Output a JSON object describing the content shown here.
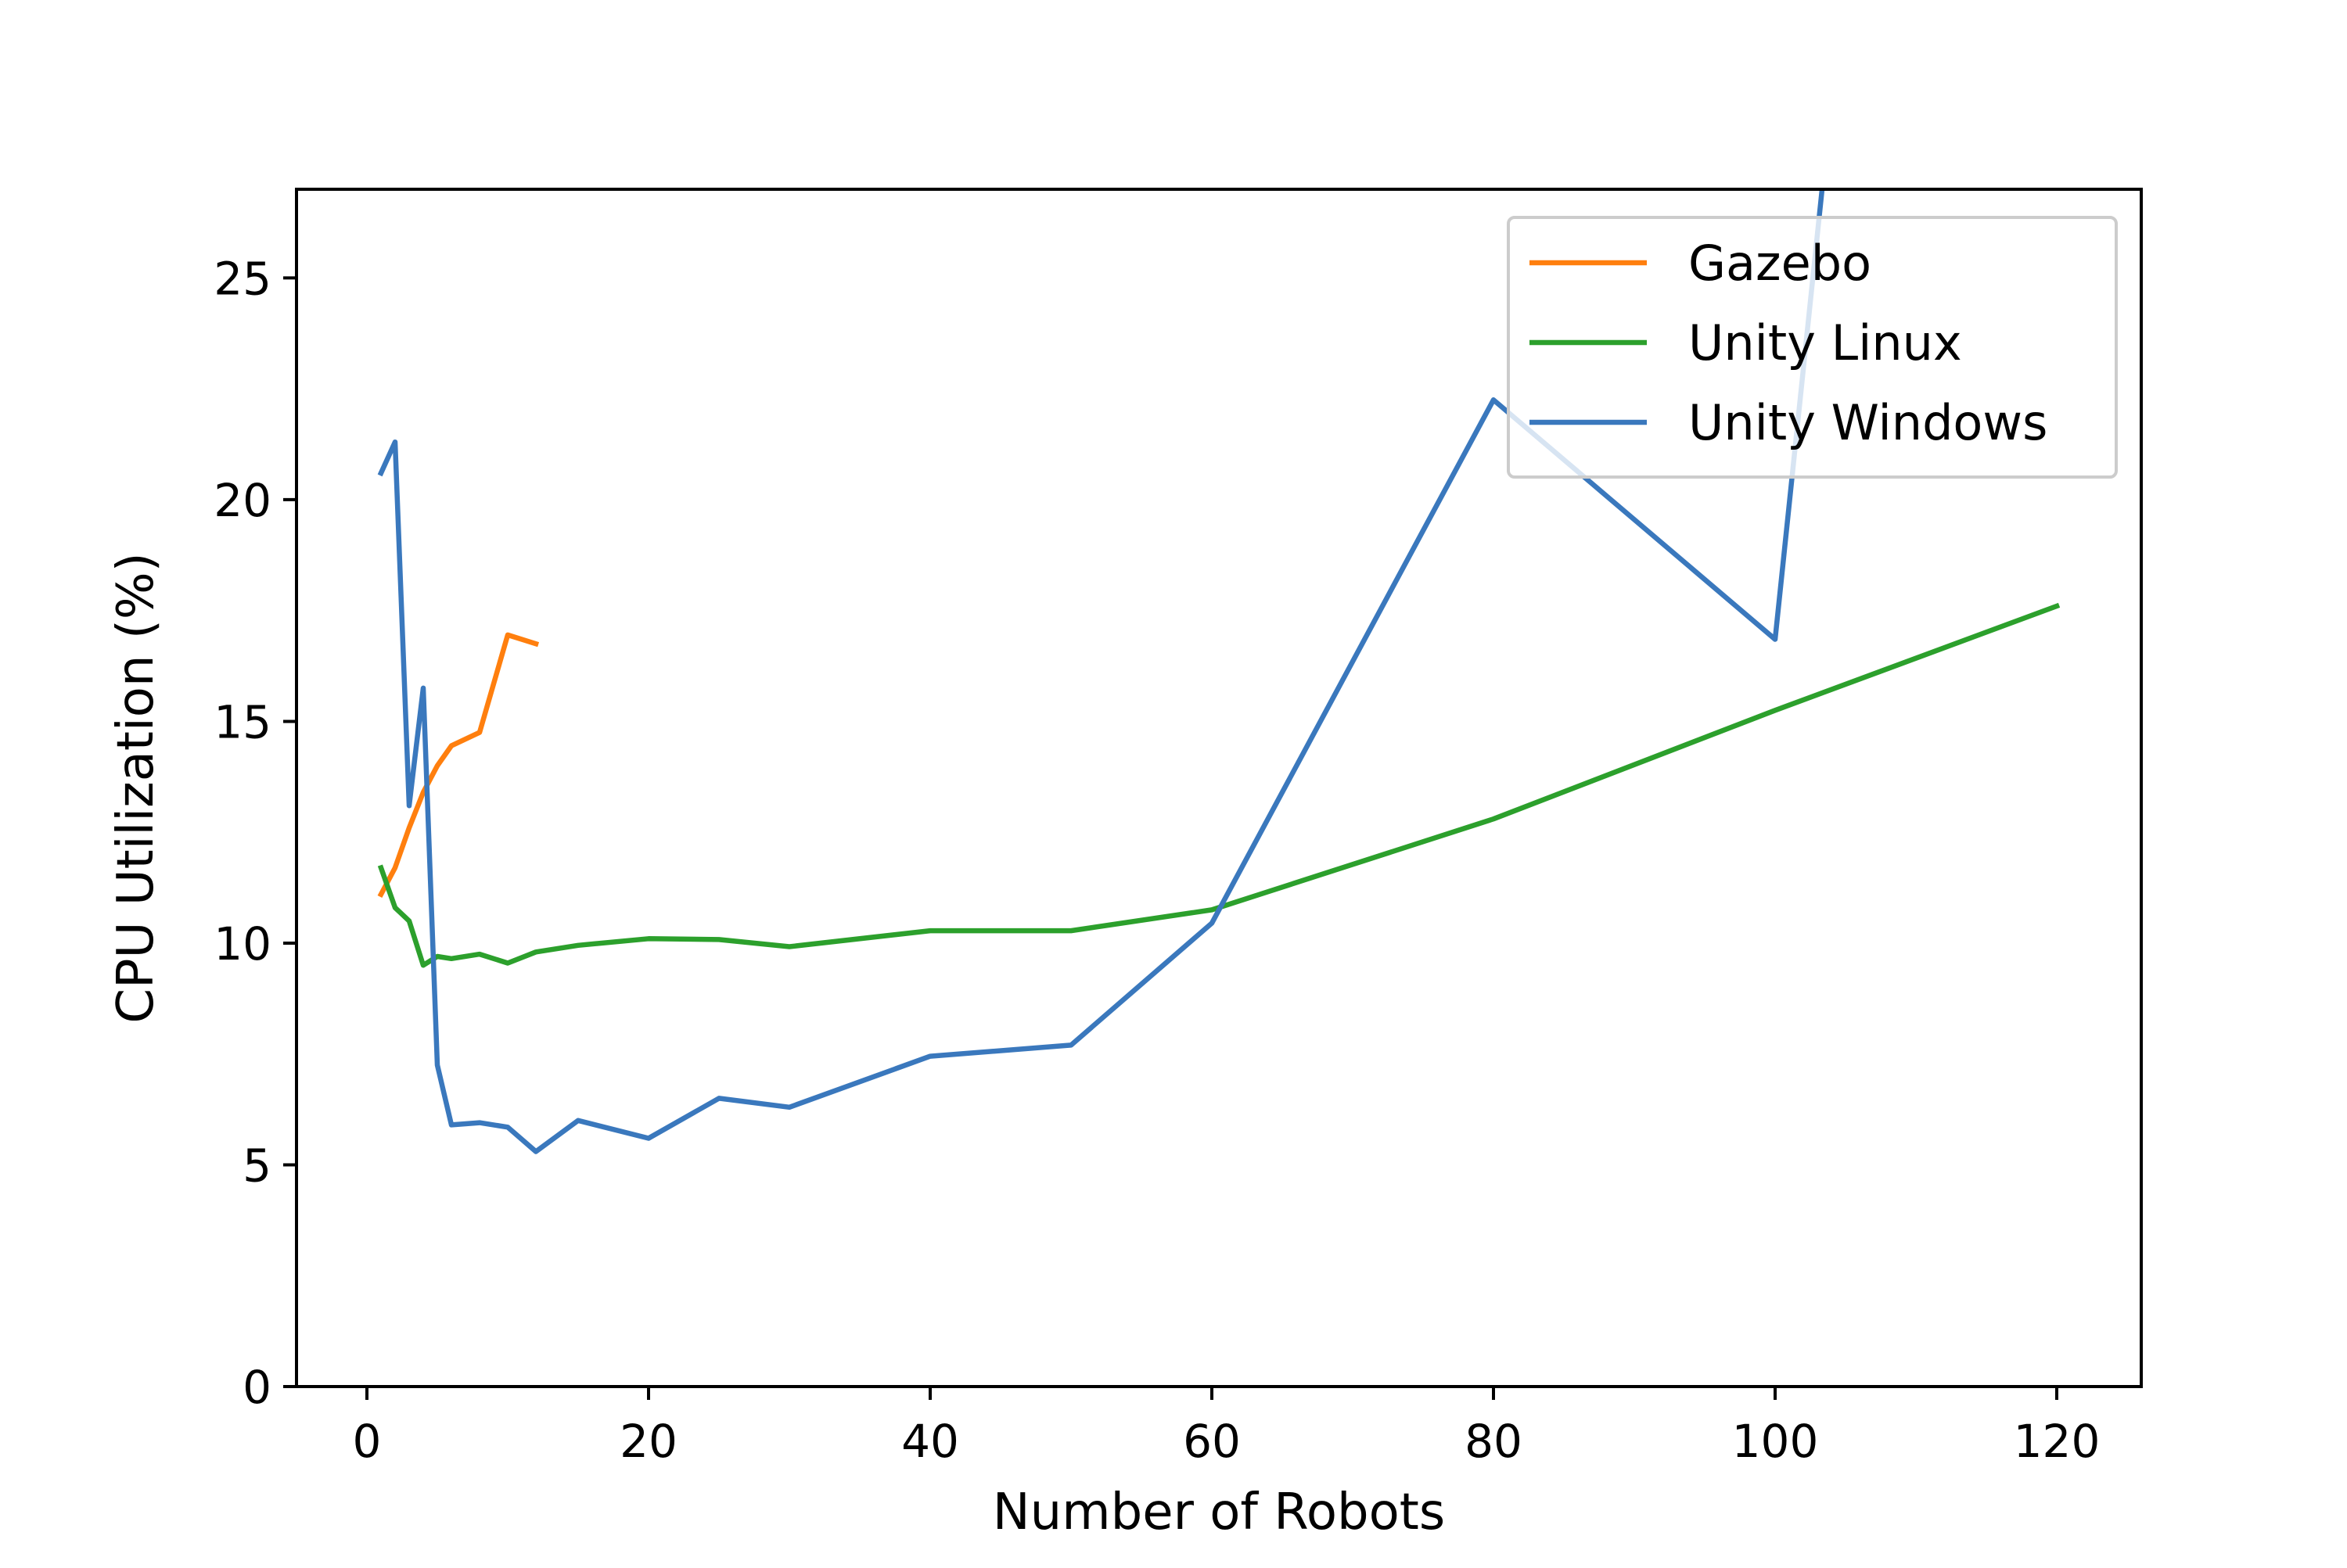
{
  "chart_data": {
    "type": "line",
    "title": "",
    "xlabel": "Number of Robots",
    "ylabel": "CPU Utilization (%)",
    "xlim": [
      -5,
      126
    ],
    "ylim": [
      0,
      27
    ],
    "xticks": [
      0,
      20,
      40,
      60,
      80,
      100,
      120
    ],
    "yticks": [
      0,
      5,
      10,
      15,
      20,
      25
    ],
    "grid": false,
    "legend_position": "top-right",
    "series": [
      {
        "name": "Gazebo",
        "color": "#ff7f0e",
        "x": [
          1,
          2,
          3,
          4,
          5,
          6,
          8,
          10,
          12
        ],
        "y": [
          11.1,
          11.7,
          12.6,
          13.4,
          14.0,
          14.45,
          14.75,
          16.95,
          16.75
        ]
      },
      {
        "name": "Unity Linux",
        "color": "#2ca02c",
        "x": [
          1,
          2,
          3,
          4,
          5,
          6,
          8,
          10,
          12,
          15,
          20,
          25,
          30,
          40,
          50,
          60,
          80,
          100,
          120
        ],
        "y": [
          11.7,
          10.8,
          10.5,
          9.5,
          9.7,
          9.65,
          9.75,
          9.55,
          9.8,
          9.95,
          10.1,
          10.08,
          9.92,
          10.28,
          10.28,
          10.75,
          12.8,
          15.25,
          17.6
        ]
      },
      {
        "name": "Unity Windows",
        "color": "#3a78bd",
        "x": [
          1,
          2,
          3,
          4,
          5,
          6,
          8,
          10,
          12,
          15,
          20,
          25,
          30,
          40,
          50,
          60,
          80,
          100,
          103.5
        ],
        "y": [
          20.6,
          21.3,
          13.1,
          15.75,
          7.25,
          5.9,
          5.95,
          5.85,
          5.3,
          6.0,
          5.6,
          6.5,
          6.3,
          7.45,
          7.7,
          10.45,
          22.25,
          16.85,
          27.5
        ]
      }
    ]
  }
}
